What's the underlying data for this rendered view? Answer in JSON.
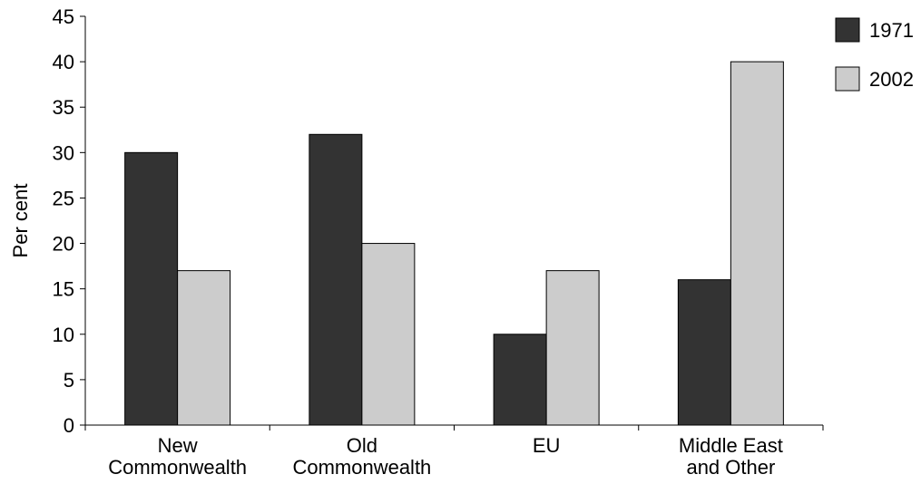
{
  "chart_data": {
    "type": "bar",
    "title": "",
    "xlabel": "",
    "ylabel": "Per cent",
    "ylim": [
      0,
      45
    ],
    "yticks": [
      0,
      5,
      10,
      15,
      20,
      25,
      30,
      35,
      40,
      45
    ],
    "grid": false,
    "legend_position": "top-right",
    "categories": [
      [
        "New",
        "Commonwealth"
      ],
      [
        "Old",
        "Commonwealth"
      ],
      [
        "EU"
      ],
      [
        "Middle East",
        "and Other"
      ]
    ],
    "series": [
      {
        "name": "1971",
        "color": "#333333",
        "values": [
          30,
          32,
          10,
          16
        ]
      },
      {
        "name": "2002",
        "color": "#cccccc",
        "values": [
          17,
          20,
          17,
          40
        ]
      }
    ]
  }
}
